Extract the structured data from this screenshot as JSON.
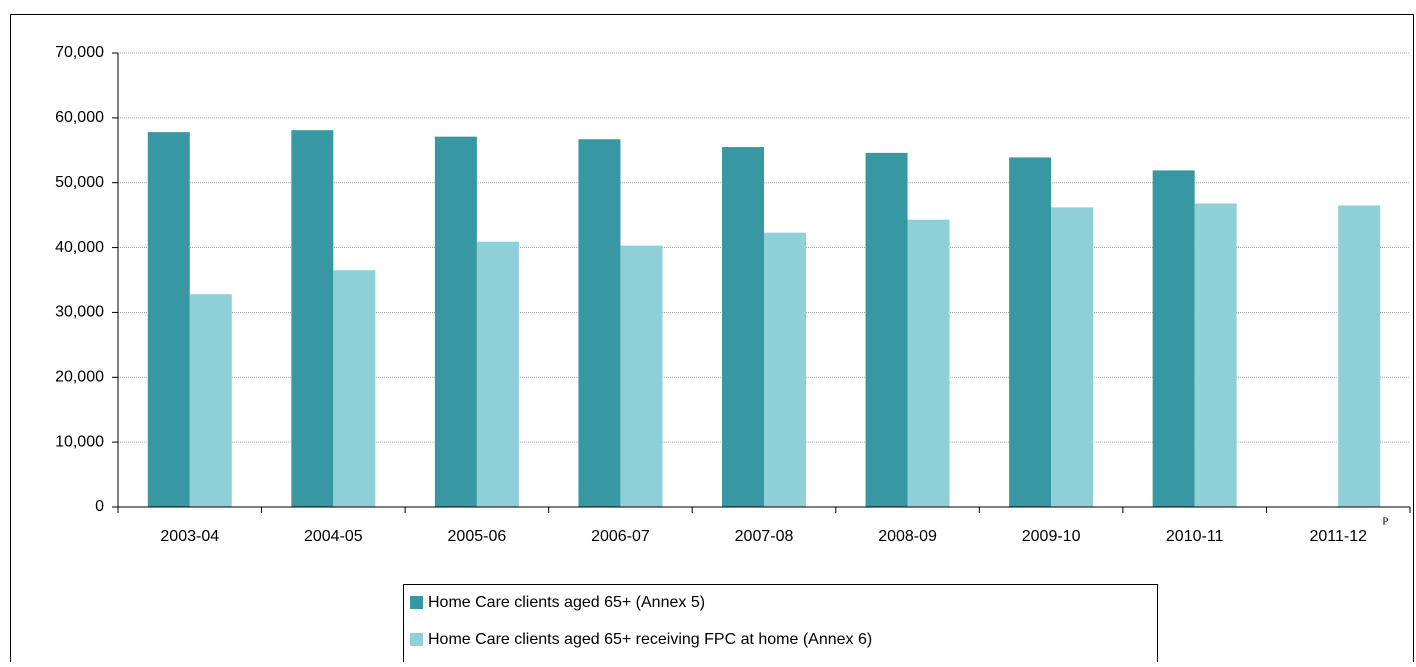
{
  "chart_data": {
    "type": "bar",
    "categories": [
      "2003-04",
      "2004-05",
      "2005-06",
      "2006-07",
      "2007-08",
      "2008-09",
      "2009-10",
      "2010-11",
      "2011-12"
    ],
    "annotation": "P",
    "series": [
      {
        "name": "Home Care clients aged 65+ (Annex 5)",
        "color": "#3797a2",
        "values": [
          57800,
          58100,
          57100,
          56700,
          55500,
          54600,
          53900,
          51900,
          null
        ]
      },
      {
        "name": "Home Care clients aged 65+ receiving FPC at home (Annex 6)",
        "color": "#8ecfd8",
        "values": [
          32800,
          36500,
          40900,
          40300,
          42300,
          44300,
          46200,
          46800,
          46500
        ]
      }
    ],
    "ylim": [
      0,
      70000
    ],
    "yticks": [
      0,
      {
        "value": 10000,
        "label": "10,000"
      },
      {
        "value": 20000,
        "label": "20,000"
      },
      {
        "value": 30000,
        "label": "30,000"
      },
      {
        "value": 40000,
        "label": "40,000"
      },
      {
        "value": 50000,
        "label": "50,000"
      },
      {
        "value": 60000,
        "label": "60,000"
      },
      {
        "value": 70000,
        "label": "70,000"
      }
    ],
    "grid": true
  }
}
